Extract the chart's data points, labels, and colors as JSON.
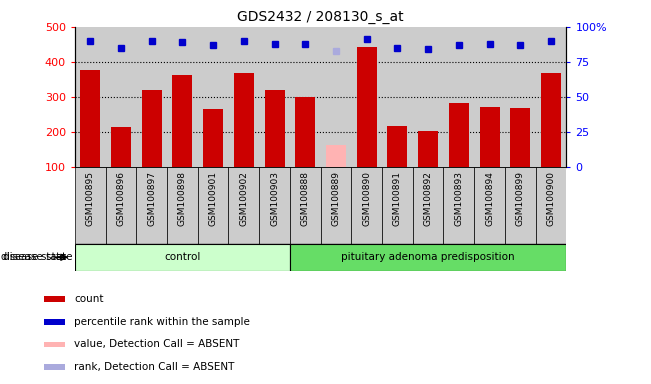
{
  "title": "GDS2432 / 208130_s_at",
  "samples": [
    "GSM100895",
    "GSM100896",
    "GSM100897",
    "GSM100898",
    "GSM100901",
    "GSM100902",
    "GSM100903",
    "GSM100888",
    "GSM100889",
    "GSM100890",
    "GSM100891",
    "GSM100892",
    "GSM100893",
    "GSM100894",
    "GSM100899",
    "GSM100900"
  ],
  "counts": [
    378,
    213,
    320,
    362,
    267,
    367,
    320,
    300,
    163,
    443,
    216,
    204,
    283,
    272,
    268,
    368
  ],
  "absent_flags": [
    false,
    false,
    false,
    false,
    false,
    false,
    false,
    false,
    true,
    false,
    false,
    false,
    false,
    false,
    false,
    false
  ],
  "percentile_ranks_pct": [
    90,
    85,
    90,
    89,
    87,
    90,
    88,
    88,
    83,
    91,
    85,
    84,
    87,
    88,
    87,
    90
  ],
  "rank_absent_flags": [
    false,
    false,
    false,
    false,
    false,
    false,
    false,
    false,
    true,
    false,
    false,
    false,
    false,
    false,
    false,
    false
  ],
  "control_count": 7,
  "group_labels": [
    "control",
    "pituitary adenoma predisposition"
  ],
  "ylim_left": [
    100,
    500
  ],
  "ylim_right": [
    0,
    100
  ],
  "yticks_left": [
    100,
    200,
    300,
    400,
    500
  ],
  "yticks_right": [
    0,
    25,
    50,
    75,
    100
  ],
  "bar_color_normal": "#cc0000",
  "bar_color_absent": "#ffb3b3",
  "rank_color_normal": "#0000cc",
  "rank_color_absent": "#aaaadd",
  "control_bg": "#ccffcc",
  "disease_bg": "#66dd66",
  "sample_bg": "#cccccc",
  "legend_items": [
    {
      "label": "count",
      "color": "#cc0000"
    },
    {
      "label": "percentile rank within the sample",
      "color": "#0000cc"
    },
    {
      "label": "value, Detection Call = ABSENT",
      "color": "#ffb3b3"
    },
    {
      "label": "rank, Detection Call = ABSENT",
      "color": "#aaaadd"
    }
  ]
}
